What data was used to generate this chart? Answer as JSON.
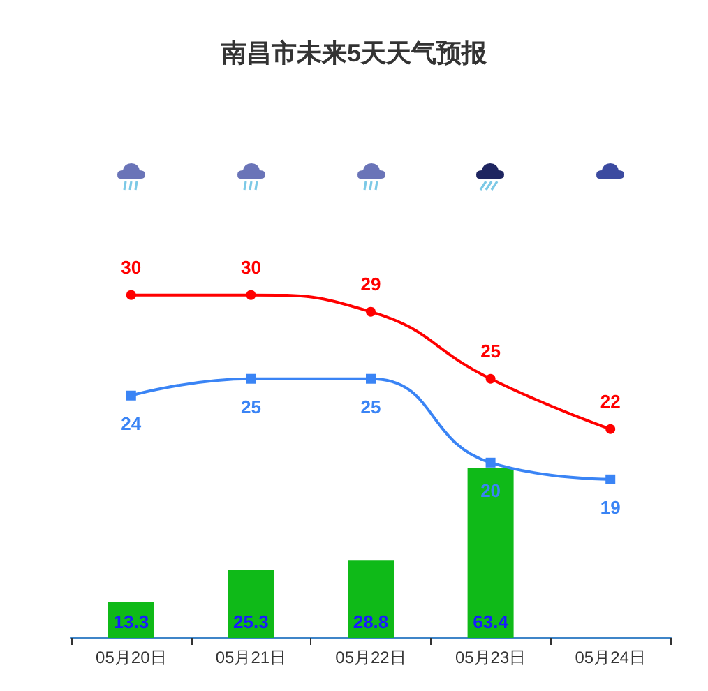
{
  "chart_data": {
    "type": "bar",
    "title": "南昌市未来5天天气预报",
    "categories": [
      "05月20日",
      "05月21日",
      "05月22日",
      "05月23日",
      "05月24日"
    ],
    "data_labels": true,
    "tick_labels": "x",
    "y2lim": [
      0,
      63.4
    ],
    "series": [
      {
        "axis": "y2",
        "color": "#0fba18",
        "values": [
          13.3,
          25.3,
          28.8,
          63.4,
          null
        ]
      },
      {
        "type": "line",
        "color": "#ff0000",
        "marker": "circle",
        "line_style": "solid",
        "values": [
          30,
          30,
          29,
          25,
          22
        ]
      },
      {
        "type": "line",
        "color": "#3a84f5",
        "marker": "square",
        "line_style": "solid",
        "values": [
          24,
          25,
          25,
          20,
          19
        ]
      }
    ]
  }
}
